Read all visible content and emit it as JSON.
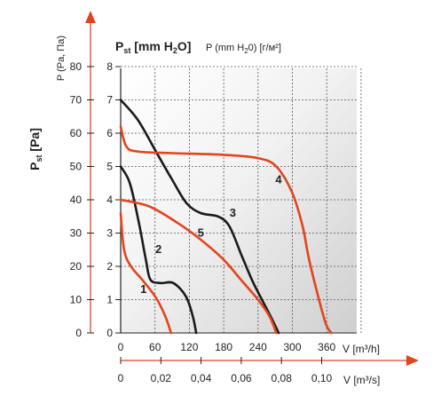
{
  "colors": {
    "black_curve": "#1a1a1a",
    "orange_curve": "#e2441c",
    "axis_arrow": "#e2441c",
    "grid": "#555555",
    "plot_bg_light": "#ffffff",
    "plot_bg_dark": "#cfcfcf"
  },
  "labels": {
    "left_axis_unit": "P (Pa, Па)",
    "left_axis_title_main": "P",
    "left_axis_title_sub": "st",
    "left_axis_title_unit": " [Pa]",
    "top_title_main": "P",
    "top_title_sub": "st",
    "top_title_rest": " [mm H",
    "top_title_h2o_sub": "2",
    "top_title_close": "O]",
    "top_title_alt_a": "P (mm H",
    "top_title_alt_sub": "2",
    "top_title_alt_b": "0) [г/м²]",
    "x_axis_label_1": "V [m³/h]",
    "x_axis_label_2": "V [m³/s]"
  },
  "chart_data": {
    "type": "line",
    "y_pa_ticks": [
      "0",
      "10",
      "20",
      "30",
      "40",
      "50",
      "60",
      "70",
      "80"
    ],
    "y_mm_ticks": [
      "0",
      "1",
      "2",
      "3",
      "4",
      "5",
      "6",
      "7",
      "8"
    ],
    "x_m3h_ticks": [
      "0",
      "60",
      "120",
      "180",
      "240",
      "300",
      "360"
    ],
    "x_m3s_ticks": [
      "0",
      "0,02",
      "0,04",
      "0,06",
      "0,08",
      "0,10"
    ],
    "xlim": [
      0,
      360
    ],
    "ylim": [
      0,
      8
    ],
    "grid": true,
    "series": [
      {
        "name": "1",
        "color": "orange",
        "label_at": {
          "x": 40,
          "y": 1.2
        },
        "points": [
          [
            0,
            3.6
          ],
          [
            6,
            2.5
          ],
          [
            18,
            2.0
          ],
          [
            40,
            1.55
          ],
          [
            62,
            1.05
          ],
          [
            78,
            0.5
          ],
          [
            88,
            0.0
          ]
        ]
      },
      {
        "name": "2",
        "color": "black",
        "label_at": {
          "x": 66,
          "y": 2.4
        },
        "points": [
          [
            0,
            5.0
          ],
          [
            16,
            4.5
          ],
          [
            32,
            3.3
          ],
          [
            44,
            2.2
          ],
          [
            52,
            1.6
          ],
          [
            70,
            1.5
          ],
          [
            92,
            1.5
          ],
          [
            114,
            1.1
          ],
          [
            126,
            0.5
          ],
          [
            132,
            0.0
          ]
        ]
      },
      {
        "name": "3",
        "color": "black",
        "label_at": {
          "x": 196,
          "y": 3.5
        },
        "points": [
          [
            0,
            7.0
          ],
          [
            30,
            6.4
          ],
          [
            60,
            5.5
          ],
          [
            90,
            4.6
          ],
          [
            115,
            3.9
          ],
          [
            140,
            3.6
          ],
          [
            170,
            3.5
          ],
          [
            190,
            3.2
          ],
          [
            212,
            2.3
          ],
          [
            232,
            1.5
          ],
          [
            262,
            0.5
          ],
          [
            276,
            0.0
          ]
        ]
      },
      {
        "name": "4",
        "color": "orange",
        "label_at": {
          "x": 276,
          "y": 4.5
        },
        "points": [
          [
            0,
            6.2
          ],
          [
            10,
            5.6
          ],
          [
            30,
            5.45
          ],
          [
            90,
            5.4
          ],
          [
            180,
            5.35
          ],
          [
            240,
            5.25
          ],
          [
            272,
            5.0
          ],
          [
            300,
            4.2
          ],
          [
            318,
            3.2
          ],
          [
            328,
            2.3
          ],
          [
            342,
            1.3
          ],
          [
            358,
            0.3
          ],
          [
            368,
            0.0
          ]
        ]
      },
      {
        "name": "5",
        "color": "orange",
        "label_at": {
          "x": 140,
          "y": 2.9
        },
        "points": [
          [
            0,
            4.0
          ],
          [
            50,
            3.8
          ],
          [
            100,
            3.3
          ],
          [
            140,
            2.8
          ],
          [
            180,
            2.2
          ],
          [
            210,
            1.6
          ],
          [
            240,
            1.0
          ],
          [
            260,
            0.5
          ],
          [
            272,
            0.0
          ]
        ]
      }
    ]
  }
}
